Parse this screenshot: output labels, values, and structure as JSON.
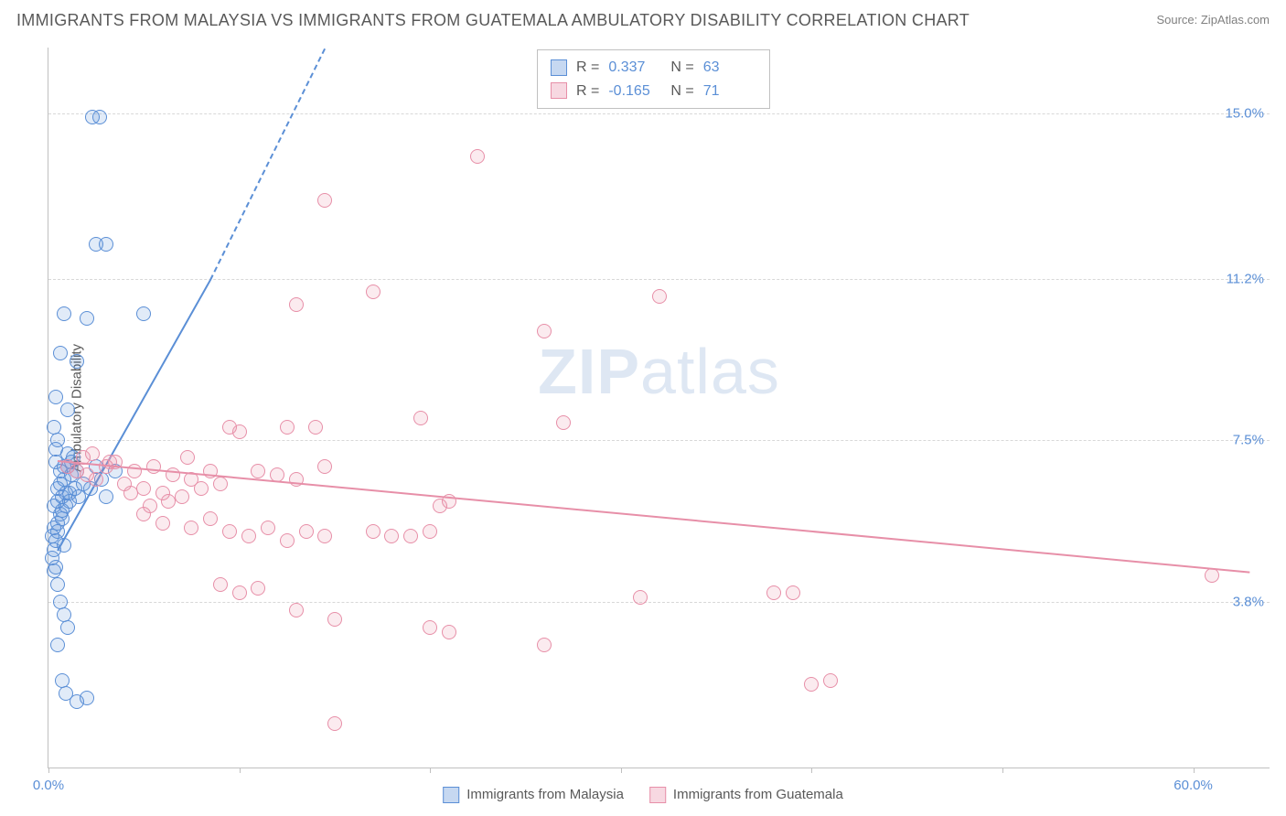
{
  "title": "IMMIGRANTS FROM MALAYSIA VS IMMIGRANTS FROM GUATEMALA AMBULATORY DISABILITY CORRELATION CHART",
  "source": "Source: ZipAtlas.com",
  "ylabel": "Ambulatory Disability",
  "watermark_heavy": "ZIP",
  "watermark_light": "atlas",
  "chart": {
    "type": "scatter",
    "background_color": "#ffffff",
    "grid_color": "#d8d8d8",
    "axis_color": "#c0c0c0",
    "label_color": "#595959",
    "tick_color": "#5b8fd6",
    "xlim": [
      0,
      64
    ],
    "ylim": [
      0,
      16.5
    ],
    "yticks": [
      {
        "value": 3.8,
        "label": "3.8%"
      },
      {
        "value": 7.5,
        "label": "7.5%"
      },
      {
        "value": 11.2,
        "label": "11.2%"
      },
      {
        "value": 15.0,
        "label": "15.0%"
      }
    ],
    "xticks": [
      {
        "value": 0,
        "label": "0.0%"
      },
      {
        "value": 10,
        "label": ""
      },
      {
        "value": 20,
        "label": ""
      },
      {
        "value": 30,
        "label": ""
      },
      {
        "value": 40,
        "label": ""
      },
      {
        "value": 50,
        "label": ""
      },
      {
        "value": 60,
        "label": "60.0%"
      }
    ],
    "marker_radius": 8,
    "marker_fill_opacity": 0.18,
    "series": [
      {
        "key": "malaysia",
        "label": "Immigrants from Malaysia",
        "color": "#5b8fd6",
        "r_value": "0.337",
        "n_value": "63",
        "trend": {
          "x1": 0.5,
          "y1": 5.0,
          "x2": 8.5,
          "y2": 11.2,
          "dashed_to_x": 14.5,
          "dashed_to_y": 16.5
        },
        "points": [
          [
            0.2,
            5.3
          ],
          [
            0.3,
            5.0
          ],
          [
            0.5,
            5.4
          ],
          [
            0.4,
            5.2
          ],
          [
            0.6,
            5.8
          ],
          [
            0.3,
            6.0
          ],
          [
            0.7,
            6.2
          ],
          [
            0.5,
            6.4
          ],
          [
            0.8,
            6.6
          ],
          [
            0.6,
            6.8
          ],
          [
            1.0,
            6.9
          ],
          [
            0.4,
            7.0
          ],
          [
            1.2,
            6.7
          ],
          [
            0.9,
            6.3
          ],
          [
            1.1,
            6.1
          ],
          [
            0.7,
            5.9
          ],
          [
            1.3,
            7.1
          ],
          [
            1.5,
            6.8
          ],
          [
            1.0,
            7.2
          ],
          [
            0.8,
            5.1
          ],
          [
            0.2,
            4.8
          ],
          [
            0.3,
            4.5
          ],
          [
            0.5,
            4.2
          ],
          [
            0.4,
            4.6
          ],
          [
            0.6,
            3.8
          ],
          [
            0.8,
            3.5
          ],
          [
            1.0,
            3.2
          ],
          [
            0.5,
            2.8
          ],
          [
            0.7,
            2.0
          ],
          [
            0.9,
            1.7
          ],
          [
            1.5,
            1.5
          ],
          [
            2.0,
            1.6
          ],
          [
            0.3,
            7.8
          ],
          [
            0.5,
            7.5
          ],
          [
            1.8,
            6.5
          ],
          [
            2.2,
            6.4
          ],
          [
            2.5,
            6.9
          ],
          [
            2.8,
            6.6
          ],
          [
            3.0,
            6.2
          ],
          [
            3.5,
            6.8
          ],
          [
            0.4,
            8.5
          ],
          [
            1.0,
            8.2
          ],
          [
            0.6,
            9.5
          ],
          [
            1.5,
            9.3
          ],
          [
            0.8,
            10.4
          ],
          [
            2.0,
            10.3
          ],
          [
            5.0,
            10.4
          ],
          [
            2.5,
            12.0
          ],
          [
            3.0,
            12.0
          ],
          [
            2.3,
            14.9
          ],
          [
            2.7,
            14.9
          ],
          [
            0.5,
            5.6
          ],
          [
            0.7,
            5.7
          ],
          [
            0.9,
            6.0
          ],
          [
            1.1,
            6.3
          ],
          [
            0.6,
            6.5
          ],
          [
            0.8,
            6.9
          ],
          [
            1.2,
            7.0
          ],
          [
            0.4,
            7.3
          ],
          [
            1.4,
            6.4
          ],
          [
            1.6,
            6.2
          ],
          [
            0.3,
            5.5
          ],
          [
            0.5,
            6.1
          ]
        ]
      },
      {
        "key": "guatemala",
        "label": "Immigrants from Guatemala",
        "color": "#e78fa8",
        "r_value": "-0.165",
        "n_value": "71",
        "trend": {
          "x1": 0.5,
          "y1": 7.05,
          "x2": 63,
          "y2": 4.5
        },
        "points": [
          [
            1.5,
            6.8
          ],
          [
            2.0,
            6.7
          ],
          [
            2.5,
            6.6
          ],
          [
            3.0,
            6.9
          ],
          [
            3.5,
            7.0
          ],
          [
            4.0,
            6.5
          ],
          [
            4.5,
            6.8
          ],
          [
            5.0,
            6.4
          ],
          [
            5.5,
            6.9
          ],
          [
            6.0,
            6.3
          ],
          [
            6.5,
            6.7
          ],
          [
            7.0,
            6.2
          ],
          [
            7.5,
            6.6
          ],
          [
            8.0,
            6.4
          ],
          [
            8.5,
            6.8
          ],
          [
            9.0,
            6.5
          ],
          [
            9.5,
            7.8
          ],
          [
            10.0,
            7.7
          ],
          [
            11.0,
            6.8
          ],
          [
            12.0,
            6.7
          ],
          [
            12.5,
            7.8
          ],
          [
            13.0,
            6.6
          ],
          [
            14.5,
            6.9
          ],
          [
            14.0,
            7.8
          ],
          [
            5.0,
            5.8
          ],
          [
            6.0,
            5.6
          ],
          [
            7.5,
            5.5
          ],
          [
            8.5,
            5.7
          ],
          [
            9.5,
            5.4
          ],
          [
            10.5,
            5.3
          ],
          [
            11.5,
            5.5
          ],
          [
            12.5,
            5.2
          ],
          [
            13.5,
            5.4
          ],
          [
            14.5,
            5.3
          ],
          [
            9.0,
            4.2
          ],
          [
            10.0,
            4.0
          ],
          [
            11.0,
            4.1
          ],
          [
            13.0,
            3.6
          ],
          [
            15.0,
            3.4
          ],
          [
            17.0,
            5.4
          ],
          [
            18.0,
            5.3
          ],
          [
            19.0,
            5.3
          ],
          [
            20.0,
            5.4
          ],
          [
            19.5,
            8.0
          ],
          [
            21.0,
            6.1
          ],
          [
            20.5,
            6.0
          ],
          [
            20.0,
            3.2
          ],
          [
            21.0,
            3.1
          ],
          [
            13.0,
            10.6
          ],
          [
            14.5,
            13.0
          ],
          [
            17.0,
            10.9
          ],
          [
            22.5,
            14.0
          ],
          [
            26.0,
            10.0
          ],
          [
            27.0,
            7.9
          ],
          [
            31.0,
            3.9
          ],
          [
            32.0,
            10.8
          ],
          [
            38.0,
            4.0
          ],
          [
            39.0,
            4.0
          ],
          [
            40.0,
            1.9
          ],
          [
            41.0,
            2.0
          ],
          [
            15.0,
            1.0
          ],
          [
            26.0,
            2.8
          ],
          [
            61.0,
            4.4
          ],
          [
            1.0,
            6.9
          ],
          [
            1.8,
            7.1
          ],
          [
            2.3,
            7.2
          ],
          [
            3.2,
            7.0
          ],
          [
            4.3,
            6.3
          ],
          [
            5.3,
            6.0
          ],
          [
            6.3,
            6.1
          ],
          [
            7.3,
            7.1
          ]
        ]
      }
    ]
  },
  "stat_box": {
    "r_label": "R  =",
    "n_label": "N  ="
  }
}
